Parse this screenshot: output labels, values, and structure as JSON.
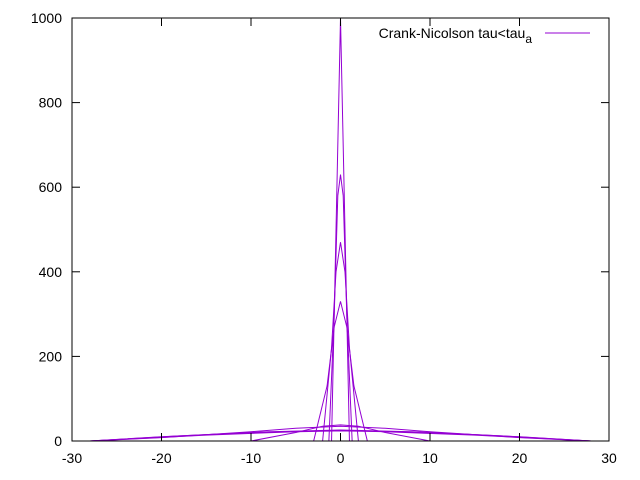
{
  "chart_data": {
    "type": "line",
    "title": "",
    "xlabel": "",
    "ylabel": "",
    "xlim": [
      -30,
      30
    ],
    "ylim": [
      0,
      1000
    ],
    "x_ticks": [
      "-30",
      "-20",
      "-10",
      "0",
      "10",
      "20",
      "30"
    ],
    "y_ticks": [
      "0",
      "200",
      "400",
      "600",
      "800",
      "1000"
    ],
    "grid": false,
    "legend": {
      "placement": "top-right",
      "entry": "Crank-Nicolson tau<tau",
      "entry_subscript": "a"
    },
    "series_color": "#9400d3",
    "series": [
      {
        "name": "Crank-Nicolson tau<tau_a",
        "points": [
          [
            -1,
            0
          ],
          [
            -0.5,
            500
          ],
          [
            0,
            1000
          ],
          [
            0.5,
            500
          ],
          [
            1,
            0
          ]
        ]
      },
      {
        "points": [
          [
            -1.3,
            0
          ],
          [
            -0.7,
            300
          ],
          [
            -0.3,
            580
          ],
          [
            0,
            630
          ],
          [
            0.3,
            580
          ],
          [
            0.7,
            300
          ],
          [
            1.3,
            0
          ]
        ]
      },
      {
        "points": [
          [
            -2,
            0
          ],
          [
            -1,
            220
          ],
          [
            -0.5,
            400
          ],
          [
            0,
            470
          ],
          [
            0.5,
            400
          ],
          [
            1,
            220
          ],
          [
            2,
            0
          ]
        ]
      },
      {
        "points": [
          [
            -3,
            0
          ],
          [
            -1.5,
            130
          ],
          [
            -0.7,
            270
          ],
          [
            0,
            330
          ],
          [
            0.7,
            270
          ],
          [
            1.5,
            130
          ],
          [
            3,
            0
          ]
        ]
      },
      {
        "points": [
          [
            -10,
            0
          ],
          [
            -5,
            20
          ],
          [
            -2,
            35
          ],
          [
            0,
            38
          ],
          [
            2,
            35
          ],
          [
            5,
            20
          ],
          [
            10,
            0
          ]
        ]
      },
      {
        "points": [
          [
            -28,
            0
          ],
          [
            -20,
            8
          ],
          [
            -10,
            22
          ],
          [
            -5,
            30
          ],
          [
            0,
            35
          ],
          [
            5,
            30
          ],
          [
            10,
            22
          ],
          [
            20,
            8
          ],
          [
            28,
            0
          ]
        ]
      },
      {
        "points": [
          [
            -28,
            0
          ],
          [
            -20,
            10
          ],
          [
            -10,
            20
          ],
          [
            0,
            25
          ],
          [
            10,
            20
          ],
          [
            20,
            10
          ],
          [
            28,
            0
          ]
        ]
      },
      {
        "points": [
          [
            -28,
            0
          ],
          [
            -18,
            12
          ],
          [
            -8,
            22
          ],
          [
            0,
            26
          ],
          [
            8,
            22
          ],
          [
            18,
            12
          ],
          [
            28,
            0
          ]
        ]
      },
      {
        "points": [
          [
            -28,
            0
          ],
          [
            -15,
            14
          ],
          [
            -5,
            22
          ],
          [
            0,
            24
          ],
          [
            5,
            22
          ],
          [
            15,
            14
          ],
          [
            28,
            0
          ]
        ]
      }
    ]
  }
}
